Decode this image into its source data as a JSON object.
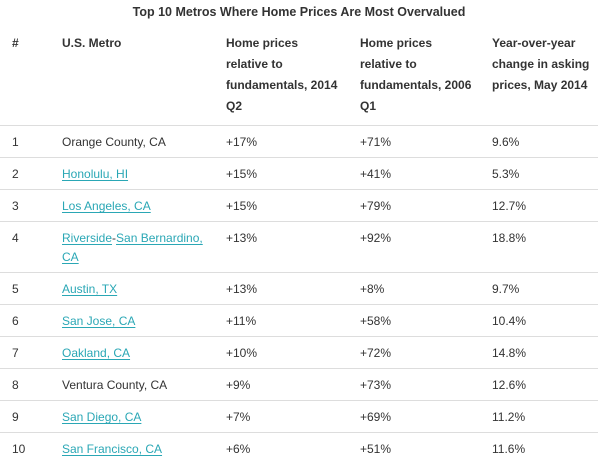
{
  "title": "Top 10 Metros Where Home Prices Are Most Overvalued",
  "headers": [
    "#",
    "U.S. Metro",
    "Home prices relative to fundamentals, 2014 Q2",
    "Home prices relative to fundamentals, 2006 Q1",
    "Year-over-year change in asking prices, May 2014"
  ],
  "rows": [
    {
      "rank": "1",
      "metro": "Orange County, CA",
      "linked": false,
      "q2014": "+17%",
      "q2006": "+71%",
      "yoy": "9.6%"
    },
    {
      "rank": "2",
      "metro": "Honolulu, HI",
      "linked": true,
      "q2014": "+15%",
      "q2006": "+41%",
      "yoy": "5.3%"
    },
    {
      "rank": "3",
      "metro": "Los Angeles, CA",
      "linked": true,
      "q2014": "+15%",
      "q2006": "+79%",
      "yoy": "12.7%"
    },
    {
      "rank": "4",
      "metro_parts": [
        "Riverside",
        "-",
        "San Bernardino, CA"
      ],
      "linked": true,
      "q2014": "+13%",
      "q2006": "+92%",
      "yoy": "18.8%"
    },
    {
      "rank": "5",
      "metro": "Austin, TX",
      "linked": true,
      "q2014": "+13%",
      "q2006": "+8%",
      "yoy": "9.7%"
    },
    {
      "rank": "6",
      "metro": "San Jose, CA",
      "linked": true,
      "q2014": "+11%",
      "q2006": "+58%",
      "yoy": "10.4%"
    },
    {
      "rank": "7",
      "metro": "Oakland, CA",
      "linked": true,
      "q2014": "+10%",
      "q2006": "+72%",
      "yoy": "14.8%"
    },
    {
      "rank": "8",
      "metro": "Ventura County, CA",
      "linked": false,
      "q2014": "+9%",
      "q2006": "+73%",
      "yoy": "12.6%"
    },
    {
      "rank": "9",
      "metro": "San Diego, CA",
      "linked": true,
      "q2014": "+7%",
      "q2006": "+69%",
      "yoy": "11.2%"
    },
    {
      "rank": "10",
      "metro": "San Francisco, CA",
      "linked": true,
      "q2014": "+6%",
      "q2006": "+51%",
      "yoy": "11.6%"
    }
  ],
  "colors": {
    "link": "#2aa7b5",
    "text": "#333333",
    "rule": "#dddddd"
  }
}
